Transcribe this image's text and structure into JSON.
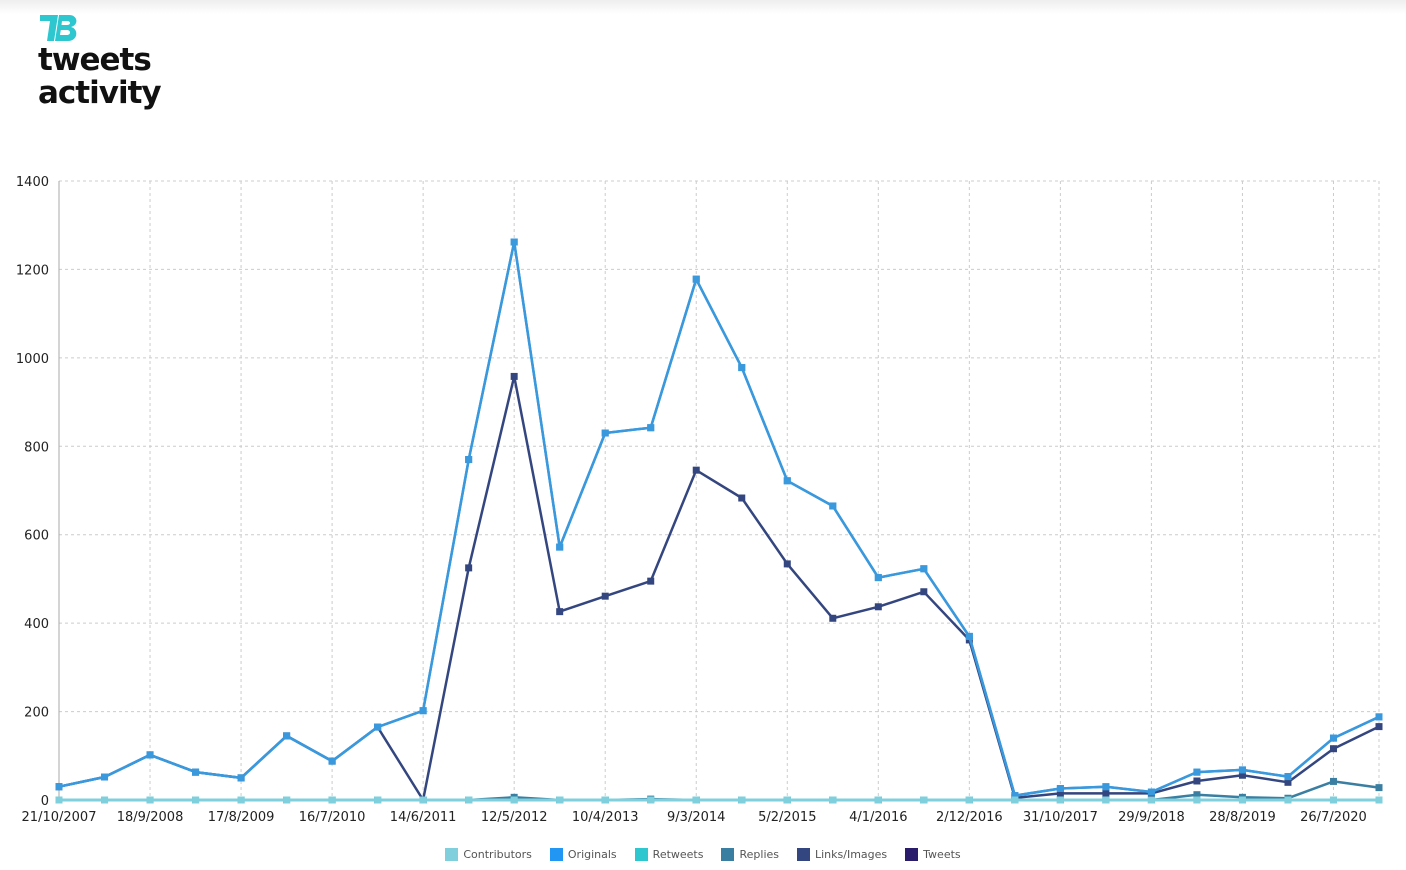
{
  "brand": {
    "line1": "tweets",
    "line2": "activity",
    "mark_text": "TB"
  },
  "colors": {
    "grid": "#cccccc",
    "logo": "#2ec6cf"
  },
  "chart_data": {
    "type": "line",
    "title": "",
    "xlabel": "",
    "ylabel": "",
    "ylim": [
      0,
      1400
    ],
    "yticks": [
      0,
      200,
      400,
      600,
      800,
      1000,
      1200,
      1400
    ],
    "x_tick_labels": [
      "21/10/2007",
      "18/9/2008",
      "17/8/2009",
      "16/7/2010",
      "14/6/2011",
      "12/5/2012",
      "10/4/2013",
      "9/3/2014",
      "5/2/2015",
      "4/1/2016",
      "2/12/2016",
      "31/10/2017",
      "29/9/2018",
      "28/8/2019",
      "26/7/2020"
    ],
    "x_tick_positions": [
      0,
      2,
      4,
      6,
      8,
      10,
      12,
      14,
      16,
      18,
      20,
      22,
      24,
      26,
      28
    ],
    "num_points": 30,
    "series": [
      {
        "name": "Contributors",
        "color": "#7fcfdc",
        "values": [
          0,
          0,
          0,
          0,
          0,
          0,
          0,
          0,
          0,
          0,
          0,
          0,
          0,
          0,
          0,
          0,
          0,
          0,
          0,
          0,
          0,
          0,
          0,
          0,
          0,
          0,
          0,
          0,
          0,
          0
        ]
      },
      {
        "name": "Originals",
        "color": "#2196f3",
        "values": [
          30,
          52,
          102,
          63,
          50,
          145,
          88,
          165,
          202,
          770,
          1262,
          572,
          830,
          842,
          1178,
          978,
          722,
          665,
          503,
          523,
          370,
          10,
          26,
          30,
          18,
          63,
          68,
          53,
          140,
          188
        ]
      },
      {
        "name": "Retweets",
        "color": "#2ec6cf",
        "values": [
          0,
          0,
          0,
          0,
          0,
          0,
          0,
          0,
          0,
          0,
          0,
          0,
          0,
          0,
          0,
          0,
          0,
          0,
          0,
          0,
          0,
          0,
          0,
          0,
          0,
          0,
          0,
          0,
          0,
          0
        ]
      },
      {
        "name": "Replies",
        "color": "#3a7ea1",
        "values": [
          0,
          0,
          0,
          0,
          0,
          0,
          0,
          0,
          0,
          0,
          6,
          0,
          0,
          2,
          0,
          0,
          0,
          0,
          0,
          0,
          0,
          0,
          0,
          0,
          0,
          12,
          6,
          4,
          42,
          28
        ]
      },
      {
        "name": "Links/Images",
        "color": "#34467f",
        "values": [
          30,
          52,
          102,
          63,
          50,
          145,
          88,
          165,
          0,
          525,
          958,
          426,
          461,
          495,
          746,
          683,
          534,
          411,
          437,
          471,
          362,
          5,
          15,
          15,
          15,
          43,
          56,
          40,
          116,
          166
        ]
      },
      {
        "name": "Tweets",
        "color": "#2a1b6b",
        "values": [
          30,
          52,
          102,
          63,
          50,
          145,
          88,
          165,
          202,
          770,
          1262,
          572,
          830,
          842,
          1178,
          978,
          722,
          665,
          503,
          523,
          370,
          10,
          26,
          30,
          18,
          63,
          68,
          53,
          140,
          188
        ]
      }
    ],
    "legend_position": "bottom-center"
  }
}
